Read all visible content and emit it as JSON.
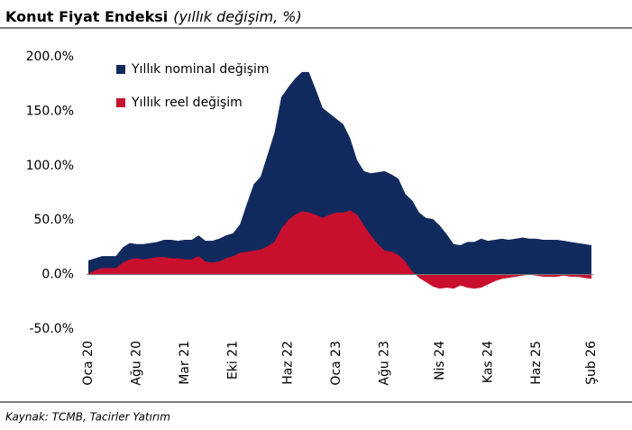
{
  "chart_data": {
    "type": "area",
    "title": "Konut Fiyat Endeksi",
    "subtitle": "(yıllık değişim, %)",
    "source": "Kaynak: TCMB, Tacirler Yatırım",
    "categories": [
      "Oca 20",
      null,
      null,
      null,
      null,
      null,
      null,
      "Ağu 20",
      null,
      null,
      null,
      null,
      null,
      null,
      "Mar 21",
      null,
      null,
      null,
      null,
      null,
      null,
      "Eki 21",
      null,
      null,
      null,
      null,
      null,
      null,
      null,
      "Haz 22",
      null,
      null,
      null,
      null,
      null,
      null,
      "Oca 23",
      null,
      null,
      null,
      null,
      null,
      null,
      "Ağu 23",
      null,
      null,
      null,
      null,
      null,
      null,
      null,
      "Nis 24",
      null,
      null,
      null,
      null,
      null,
      null,
      "Kas 24",
      null,
      null,
      null,
      null,
      null,
      null,
      "Haz 25",
      null,
      null,
      null,
      null,
      null,
      null,
      null,
      "Şub 26"
    ],
    "series": [
      {
        "name": "Yıllık nominal değişim",
        "color": "#112a5e",
        "values": [
          13,
          15,
          17,
          17,
          17,
          25,
          29,
          28,
          28,
          29,
          30,
          32,
          32,
          31,
          32,
          32,
          36,
          31,
          31,
          33,
          36,
          38,
          46,
          65,
          83,
          90,
          110,
          130,
          163,
          172,
          180,
          186,
          186,
          170,
          153,
          148,
          143,
          138,
          125,
          105,
          95,
          93,
          94,
          95,
          92,
          88,
          74,
          68,
          57,
          52,
          51,
          45,
          37,
          28,
          27,
          30,
          30,
          33,
          31,
          32,
          33,
          32,
          33,
          34,
          33,
          33,
          32,
          32,
          32,
          31,
          30,
          29,
          28,
          27
        ]
      },
      {
        "name": "Yıllık reel değişim",
        "color": "#c8102e",
        "values": [
          1,
          4,
          6,
          6,
          6,
          11,
          14,
          15,
          14,
          15,
          16,
          16,
          15,
          15,
          14,
          14,
          17,
          12,
          11,
          12,
          15,
          17,
          20,
          21,
          22,
          23,
          26,
          30,
          42,
          50,
          55,
          58,
          57,
          55,
          52,
          55,
          57,
          57,
          59,
          55,
          45,
          36,
          28,
          22,
          21,
          18,
          12,
          3,
          -3,
          -7,
          -11,
          -13,
          -12,
          -13,
          -10,
          -12,
          -13,
          -12,
          -9,
          -6,
          -4,
          -3,
          -2,
          -1,
          0,
          -1,
          -2,
          -2,
          -2,
          -1,
          -2,
          -2,
          -3,
          -4
        ]
      }
    ],
    "ylim": [
      -50,
      200
    ],
    "yticks": [
      {
        "value": -50,
        "label": "-50.0%"
      },
      {
        "value": 0,
        "label": "0.0%"
      },
      {
        "value": 50,
        "label": "50.0%"
      },
      {
        "value": 100,
        "label": "100.0%"
      },
      {
        "value": 150,
        "label": "150.0%"
      },
      {
        "value": 200,
        "label": "200.0%"
      }
    ]
  }
}
